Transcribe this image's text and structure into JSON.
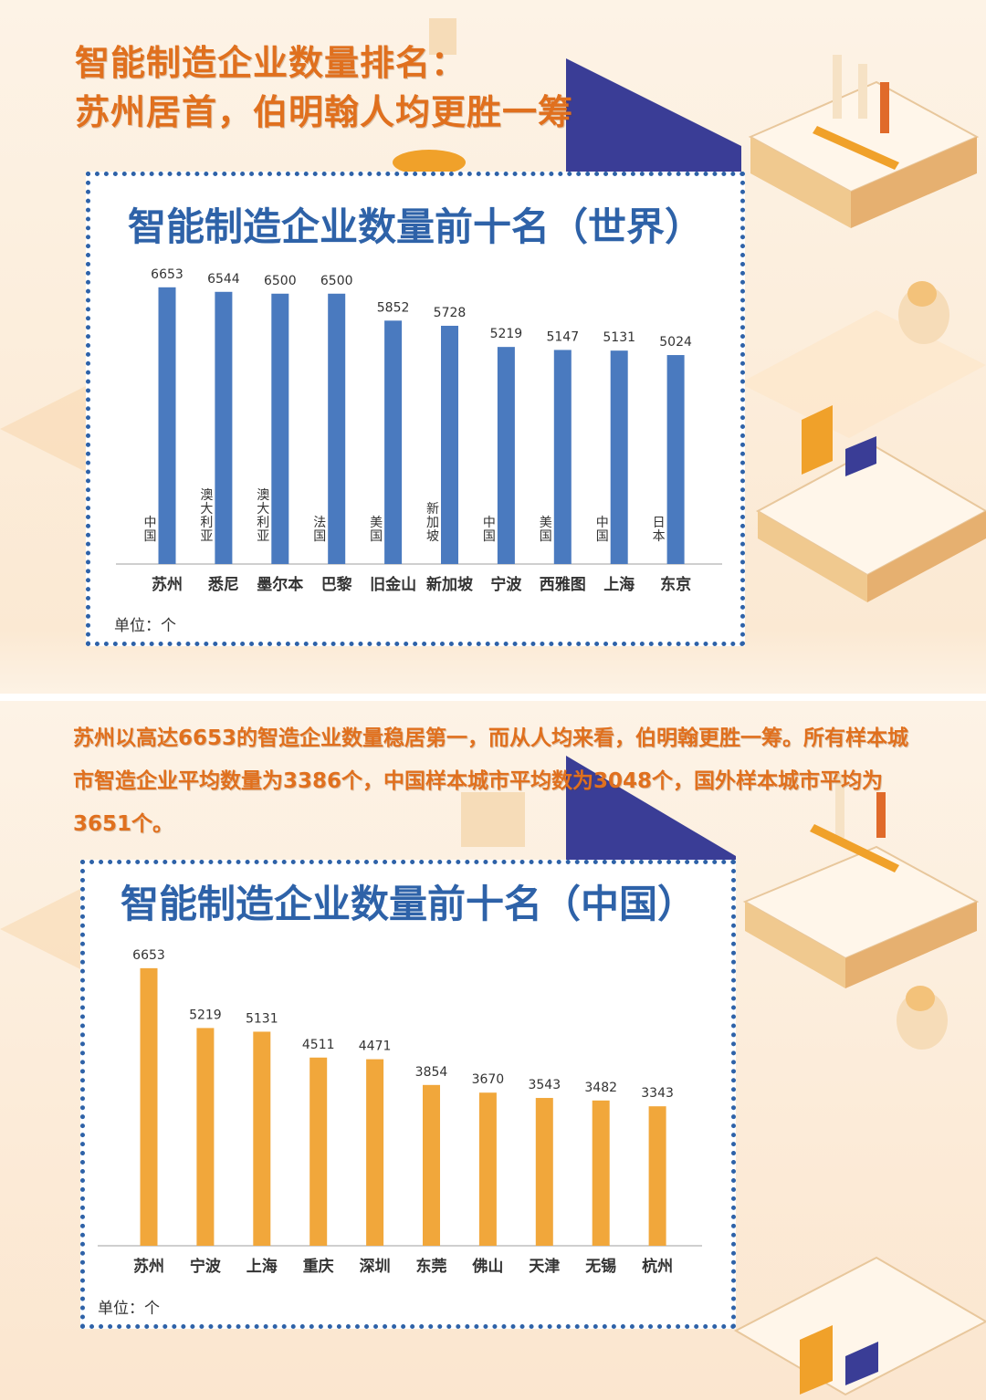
{
  "header": {
    "title_line1": "智能制造企业数量排名：",
    "title_line2": "苏州居首，伯明翰人均更胜一筹"
  },
  "paragraph": "苏州以高达6653的智造企业数量稳居第一，而从人均来看，伯明翰更胜一筹。所有样本城市智造企业平均数量为3386个，中国样本城市平均数为3048个，国外样本城市平均为3651个。",
  "colors": {
    "heading": "#e0701e",
    "card_border": "#2e62a8",
    "world_bar": "#4a7abf",
    "china_bar": "#f1a73b"
  },
  "chart_data": [
    {
      "type": "bar",
      "title": "智能制造企业数量前十名（世界）",
      "unit_label": "单位：个",
      "categories": [
        "苏州",
        "悉尼",
        "墨尔本",
        "巴黎",
        "旧金山",
        "新加坡",
        "宁波",
        "西雅图",
        "上海",
        "东京"
      ],
      "countries": [
        "中国",
        "澳大利亚",
        "澳大利亚",
        "法国",
        "美国",
        "新加坡",
        "中国",
        "美国",
        "中国",
        "日本"
      ],
      "values": [
        6653,
        6544,
        6500,
        6500,
        5852,
        5728,
        5219,
        5147,
        5131,
        5024
      ],
      "ylim": [
        0,
        7000
      ],
      "grid": false,
      "color": "#4a7abf"
    },
    {
      "type": "bar",
      "title": "智能制造企业数量前十名（中国）",
      "unit_label": "单位：个",
      "categories": [
        "苏州",
        "宁波",
        "上海",
        "重庆",
        "深圳",
        "东莞",
        "佛山",
        "天津",
        "无锡",
        "杭州"
      ],
      "values": [
        6653,
        5219,
        5131,
        4511,
        4471,
        3854,
        3670,
        3543,
        3482,
        3343
      ],
      "ylim": [
        0,
        7000
      ],
      "grid": false,
      "color": "#f1a73b"
    }
  ]
}
